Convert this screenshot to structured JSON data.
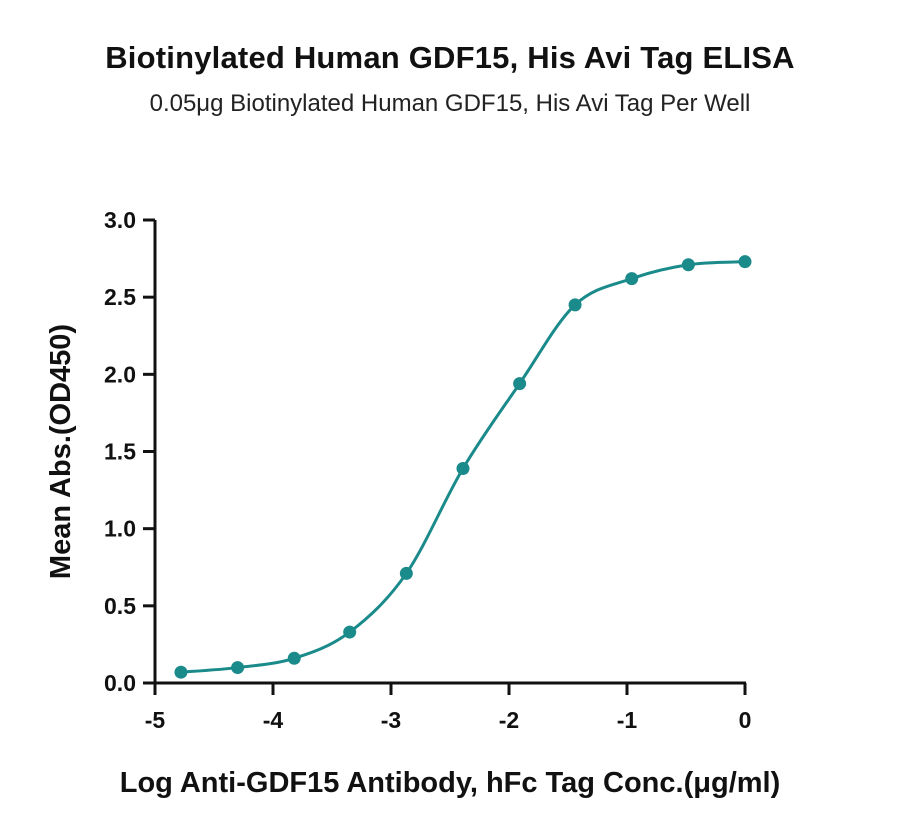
{
  "chart_data": {
    "type": "scatter",
    "title": "Biotinylated Human GDF15, His Avi Tag ELISA",
    "subtitle": "0.05μg Biotinylated Human GDF15, His Avi Tag Per Well",
    "xlabel": "Log Anti-GDF15 Antibody, hFc Tag Conc.(μg/ml)",
    "ylabel": "Mean Abs.(OD450)",
    "xlim": [
      -5,
      0
    ],
    "ylim": [
      0,
      3.0
    ],
    "x_ticks": [
      "-5",
      "-4",
      "-3",
      "-2",
      "-1",
      "0"
    ],
    "y_ticks": [
      "0.0",
      "0.5",
      "1.0",
      "1.5",
      "2.0",
      "2.5",
      "3.0"
    ],
    "grid": false,
    "color": "#1a8a8a",
    "series": [
      {
        "x": [
          -4.78,
          -4.3,
          -3.82,
          -3.35,
          -2.87,
          -2.39,
          -1.91,
          -1.44,
          -0.96,
          -0.48,
          0.0
        ],
        "y": [
          0.07,
          0.1,
          0.16,
          0.33,
          0.71,
          1.39,
          1.94,
          2.45,
          2.62,
          2.71,
          2.73
        ],
        "fit": "four-parameter logistic curve"
      }
    ]
  }
}
